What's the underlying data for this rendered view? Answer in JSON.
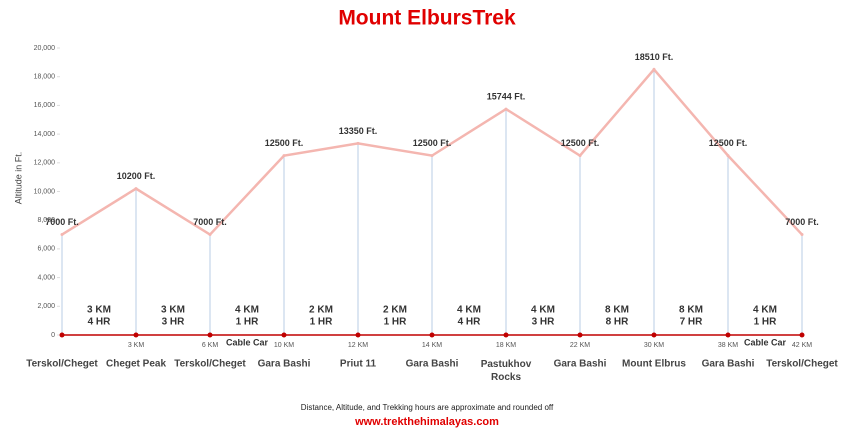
{
  "chart_data": {
    "type": "line",
    "title": "Mount ElbursTrek",
    "y_label": "Altitude in Ft.",
    "categories": [
      "Terskol/Cheget",
      "Cheget Peak",
      "Terskol/Cheget",
      "Gara Bashi",
      "Priut 11",
      "Gara Bashi",
      "Pastukhov Rocks",
      "Gara Bashi",
      "Mount Elbrus",
      "Gara Bashi",
      "Terskol/Cheget"
    ],
    "distances": [
      null,
      "3 KM",
      "6 KM",
      "10 KM",
      "12 KM",
      "14 KM",
      "18 KM",
      "22 KM",
      "30 KM",
      "38 KM",
      "42 KM"
    ],
    "values": [
      7000,
      10200,
      7000,
      12500,
      13350,
      12500,
      15744,
      12500,
      18510,
      12500,
      7000
    ],
    "value_labels": [
      "7000 Ft.",
      "10200 Ft.",
      "7000 Ft.",
      "12500 Ft.",
      "13350 Ft.",
      "12500 Ft.",
      "15744 Ft.",
      "12500 Ft.",
      "18510 Ft.",
      "12500 Ft.",
      "7000 Ft."
    ],
    "color": "#f4b6b0",
    "segments": [
      {
        "distance": "3 KM",
        "time": "4 HR"
      },
      {
        "distance": "3 KM",
        "time": "3 HR"
      },
      {
        "distance": "4 KM",
        "time": "1 HR",
        "note": "Cable Car"
      },
      {
        "distance": "2 KM",
        "time": "1 HR"
      },
      {
        "distance": "2 KM",
        "time": "1 HR"
      },
      {
        "distance": "4 KM",
        "time": "4 HR"
      },
      {
        "distance": "4 KM",
        "time": "3 HR"
      },
      {
        "distance": "8 KM",
        "time": "8 HR"
      },
      {
        "distance": "8 KM",
        "time": "7 HR"
      },
      {
        "distance": "4 KM",
        "time": "1 HR",
        "note": "Cable Car"
      }
    ],
    "ylim": [
      0,
      20000
    ],
    "yticks": [
      0,
      {
        "value": 2000,
        "label": "2,000"
      },
      {
        "value": 4000,
        "label": "4,000"
      },
      {
        "value": 6000,
        "label": "6,000"
      },
      {
        "value": 8000,
        "label": "8,000"
      },
      {
        "value": 10000,
        "label": "10,000"
      },
      {
        "value": 12000,
        "label": "12,000"
      },
      {
        "value": 14000,
        "label": "14,000"
      },
      {
        "value": 16000,
        "label": "16,000"
      },
      {
        "value": 18000,
        "label": "18,000"
      },
      {
        "value": 20000,
        "label": "20,000"
      }
    ],
    "grid": false,
    "footnote": "Distance, Altitude, and Trekking hours are approximate and rounded off",
    "website": "www.trekthehimalayas.com"
  }
}
